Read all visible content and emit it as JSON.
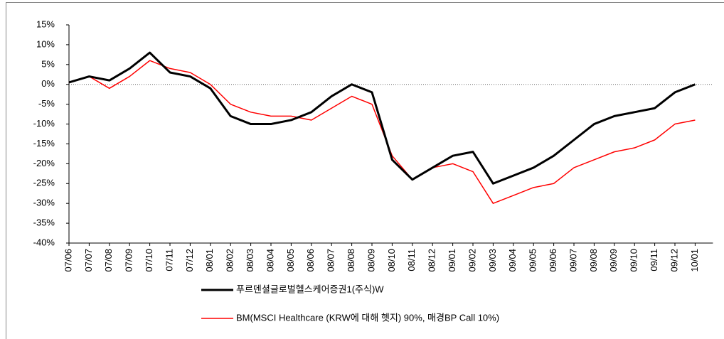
{
  "chart_data": {
    "type": "line",
    "categories": [
      "07/06",
      "07/07",
      "07/08",
      "07/09",
      "07/10",
      "07/11",
      "07/12",
      "08/01",
      "08/02",
      "08/03",
      "08/04",
      "08/05",
      "08/06",
      "08/07",
      "08/08",
      "08/09",
      "08/10",
      "08/11",
      "08/12",
      "09/01",
      "09/02",
      "09/03",
      "09/04",
      "09/05",
      "09/06",
      "09/07",
      "09/08",
      "09/09",
      "09/10",
      "09/11",
      "09/12",
      "10/01"
    ],
    "series": [
      {
        "name": "푸르덴셜글로벌헬스케어증권1(주식)W",
        "color": "#000000",
        "values": [
          0.5,
          2,
          1,
          4,
          8,
          3,
          2,
          -1,
          -8,
          -10,
          -10,
          -9,
          -7,
          -3,
          0,
          -2,
          -19,
          -24,
          -21,
          -18,
          -17,
          -25,
          -23,
          -21,
          -18,
          -14,
          -10,
          -8,
          -7,
          -6,
          -2,
          0
        ]
      },
      {
        "name": "BM(MSCI Healthcare (KRW에 대해 헷지) 90%, 매경BP Call 10%)",
        "color": "#ff0000",
        "values": [
          0.5,
          2,
          -1,
          2,
          6,
          4,
          3,
          0,
          -5,
          -7,
          -8,
          -8,
          -9,
          -6,
          -3,
          -5,
          -18,
          -24,
          -21,
          -20,
          -22,
          -30,
          -28,
          -26,
          -25,
          -21,
          -19,
          -17,
          -16,
          -14,
          -10,
          -9
        ]
      }
    ],
    "ylim": [
      -40,
      15
    ],
    "yticks": [
      {
        "value": 15,
        "label": "15%"
      },
      {
        "value": 10,
        "label": "10%"
      },
      {
        "value": 5,
        "label": "5%"
      },
      {
        "value": 0,
        "label": "0%"
      },
      {
        "value": -5,
        "label": "-5%"
      },
      {
        "value": -10,
        "label": "-10%"
      },
      {
        "value": -15,
        "label": "-15%"
      },
      {
        "value": -20,
        "label": "-20%"
      },
      {
        "value": -25,
        "label": "-25%"
      },
      {
        "value": -30,
        "label": "-30%"
      },
      {
        "value": -35,
        "label": "-35%"
      },
      {
        "value": -40,
        "label": "-40%"
      }
    ]
  }
}
